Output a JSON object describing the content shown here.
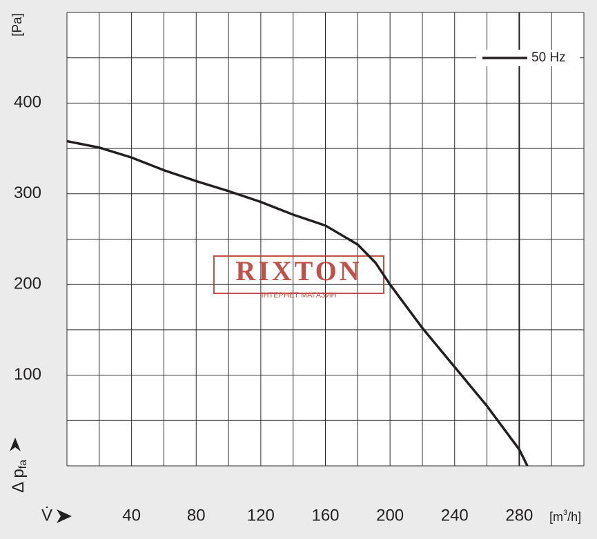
{
  "chart_data": {
    "type": "line",
    "y_unit": "[Pa]",
    "y_label": "Δ p",
    "y_label_sub": "fa",
    "x_label": "V̇",
    "x_unit_pre": "[m",
    "x_unit_sup": "3",
    "x_unit_post": "/h]",
    "x": [
      0,
      20,
      40,
      60,
      80,
      100,
      120,
      140,
      160,
      180,
      191,
      200,
      220,
      240,
      260,
      280,
      285
    ],
    "series": [
      {
        "name": "50 Hz",
        "color": "#231f20",
        "values": [
          358,
          351,
          340,
          326,
          314,
          303,
          291,
          277,
          265,
          244,
          224,
          200,
          152,
          109,
          66,
          18,
          0
        ]
      }
    ],
    "xlim": [
      0,
      320
    ],
    "ylim": [
      0,
      500
    ],
    "xticks": [
      40,
      80,
      120,
      160,
      200,
      240,
      280
    ],
    "yticks": [
      100,
      200,
      300,
      400
    ],
    "xgrid": [
      0,
      20,
      40,
      60,
      80,
      100,
      120,
      140,
      160,
      180,
      200,
      220,
      240,
      260,
      280,
      300,
      320
    ],
    "ygrid": [
      0,
      50,
      100,
      150,
      200,
      250,
      300,
      350,
      400,
      450,
      500
    ],
    "vline": 280,
    "grid": true,
    "legend": "upper right",
    "watermark": "RIXTON",
    "watermark_sub": "ІНТЕРНЕТ МАГАЗИН"
  }
}
